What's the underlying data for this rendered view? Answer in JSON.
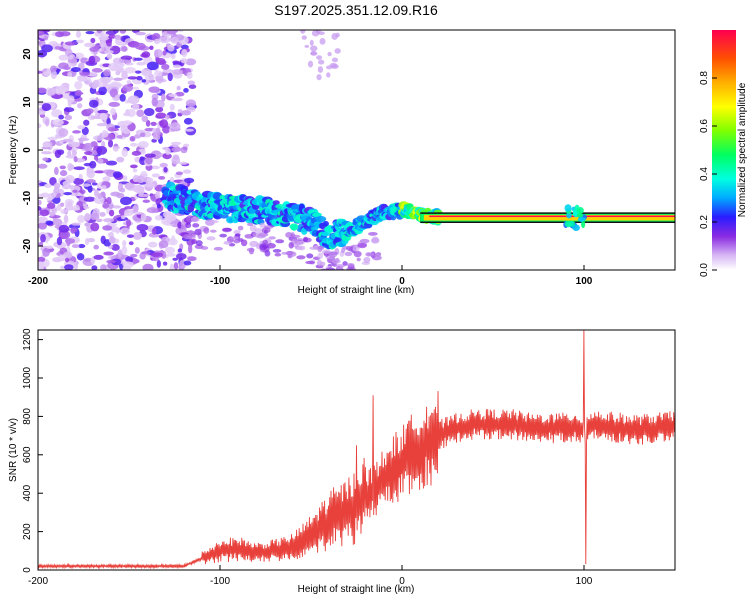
{
  "title": "S197.2025.351.12.09.R16",
  "chart_data": [
    {
      "type": "heatmap",
      "xlabel": "Height of straight line (km)",
      "ylabel": "Frequency (Hz)",
      "xlim": [
        -200,
        150
      ],
      "ylim": [
        -25,
        25
      ],
      "xticks": [
        {
          "value": -200,
          "label": "-200"
        },
        {
          "value": -100,
          "label": "-100"
        },
        {
          "value": 0,
          "label": "0"
        },
        {
          "value": 100,
          "label": "100"
        }
      ],
      "yticks": [
        {
          "value": -20,
          "label": "-20"
        },
        {
          "value": -10,
          "label": "-10"
        },
        {
          "value": 0,
          "label": "0"
        },
        {
          "value": 10,
          "label": "10"
        },
        {
          "value": 20,
          "label": "20"
        }
      ],
      "colorbar": {
        "label": "Normalized spectral amplitude",
        "range": [
          0,
          1
        ],
        "ticks": [
          {
            "value": 0,
            "label": "0.0"
          },
          {
            "value": 0.2,
            "label": "0.2"
          },
          {
            "value": 0.4,
            "label": "0.4"
          },
          {
            "value": 0.6,
            "label": "0.6"
          },
          {
            "value": 0.8,
            "label": "0.8"
          }
        ]
      },
      "ridge": {
        "description_points": [
          {
            "x": -125,
            "y": -10
          },
          {
            "x": -110,
            "y": -11.5
          },
          {
            "x": -100,
            "y": -12
          },
          {
            "x": -80,
            "y": -12.5
          },
          {
            "x": -65,
            "y": -13
          },
          {
            "x": -50,
            "y": -15
          },
          {
            "x": -40,
            "y": -18
          },
          {
            "x": -30,
            "y": -17
          },
          {
            "x": -20,
            "y": -15
          },
          {
            "x": -10,
            "y": -13
          },
          {
            "x": 0,
            "y": -12.5
          },
          {
            "x": 10,
            "y": -13.5
          },
          {
            "x": 20,
            "y": -14
          },
          {
            "x": 60,
            "y": -14
          },
          {
            "x": 100,
            "y": -14
          },
          {
            "x": 150,
            "y": -14
          }
        ]
      }
    },
    {
      "type": "line",
      "xlabel": "Height of straight line (km)",
      "ylabel": "SNR (10 * v/v)",
      "xlim": [
        -200,
        150
      ],
      "ylim": [
        0,
        1250
      ],
      "xticks": [
        {
          "value": -200,
          "label": "-200"
        },
        {
          "value": -100,
          "label": "-100"
        },
        {
          "value": 0,
          "label": "0"
        },
        {
          "value": 100,
          "label": "100"
        }
      ],
      "yticks": [
        {
          "value": 0,
          "label": "0"
        },
        {
          "value": 200,
          "label": "200"
        },
        {
          "value": 400,
          "label": "400"
        },
        {
          "value": 600,
          "label": "600"
        },
        {
          "value": 800,
          "label": "800"
        },
        {
          "value": 1000,
          "label": "1000"
        },
        {
          "value": 1200,
          "label": "1200"
        }
      ],
      "series": [
        {
          "name": "SNR",
          "color": "#e8403a",
          "envelope_x": [
            -200,
            -180,
            -150,
            -120,
            -110,
            -100,
            -90,
            -80,
            -70,
            -60,
            -50,
            -40,
            -30,
            -20,
            -15,
            -10,
            -5,
            0,
            10,
            20,
            30,
            40,
            50,
            60,
            70,
            80,
            90,
            95,
            100,
            105,
            110,
            120,
            130,
            140,
            150
          ],
          "envelope_y": [
            20,
            20,
            20,
            20,
            60,
            100,
            110,
            90,
            100,
            120,
            180,
            260,
            300,
            380,
            420,
            470,
            520,
            560,
            640,
            700,
            740,
            760,
            760,
            760,
            740,
            740,
            740,
            750,
            720,
            760,
            750,
            740,
            730,
            740,
            750
          ],
          "spikes": [
            {
              "x": -16,
              "y": 910
            },
            {
              "x": -25,
              "y": 650
            },
            {
              "x": 100,
              "y": 1250
            },
            {
              "x": 101,
              "y": 30
            }
          ]
        }
      ]
    }
  ],
  "colors": {
    "axis": "#000000",
    "line": "#e8403a"
  }
}
